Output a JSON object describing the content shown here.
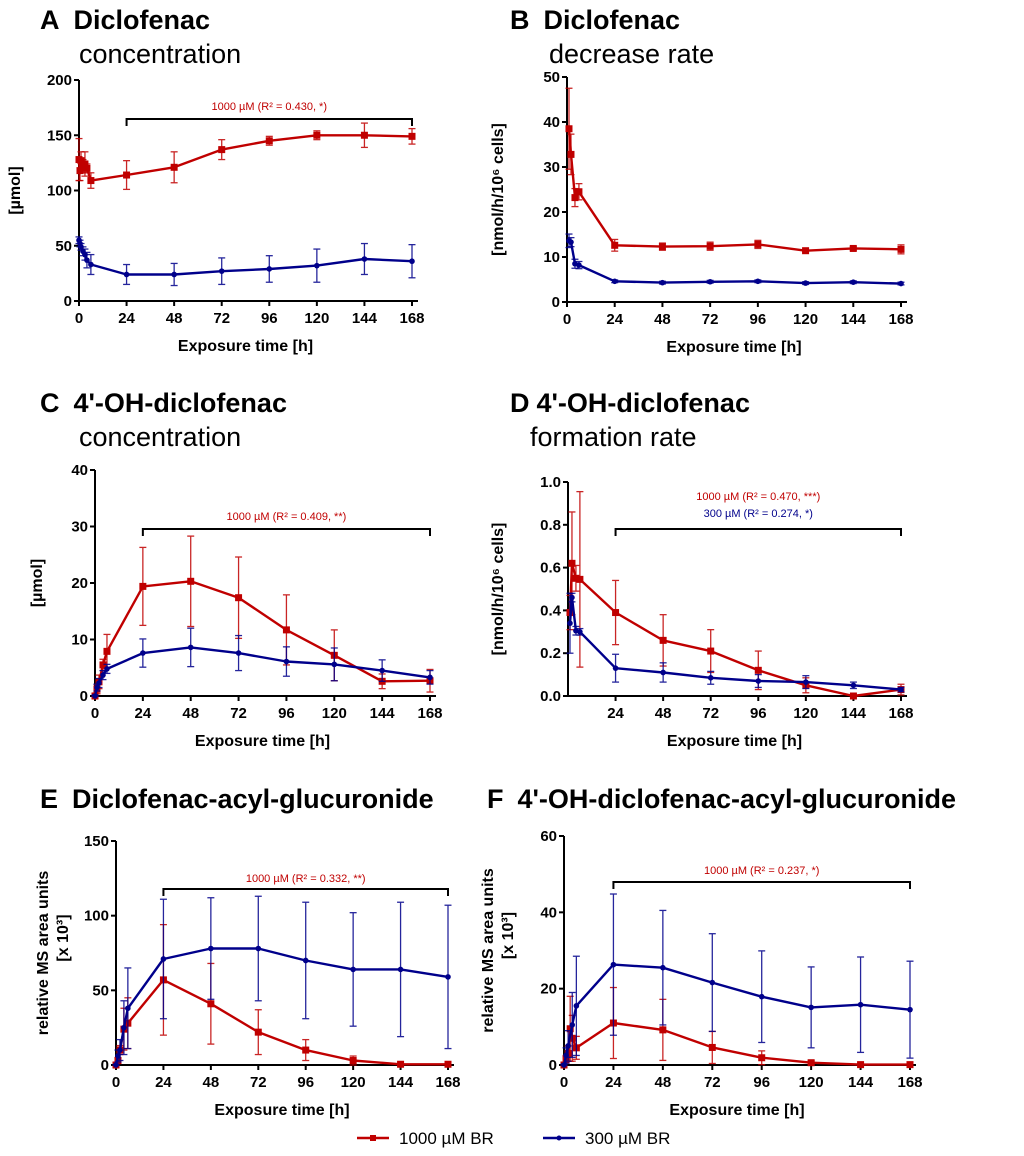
{
  "colors": {
    "red": "#c00000",
    "blue": "#00008b",
    "axis": "#000000"
  },
  "legend": [
    {
      "label": "1000 µM BR",
      "color": "#c00000",
      "marker": "square"
    },
    {
      "label": "300 µM BR",
      "color": "#00008b",
      "marker": "circle"
    }
  ],
  "chart_data": [
    {
      "panel": "A",
      "type": "line",
      "title": "Diclofenac",
      "subtitle": "concentration",
      "xlabel": "Exposure time [h]",
      "ylabel": "[µmol]",
      "xlim": [
        0,
        168
      ],
      "ylim": [
        0,
        200
      ],
      "xticks": [
        "0",
        "24",
        "48",
        "72",
        "96",
        "120",
        "144",
        "168"
      ],
      "yticks": [
        "0",
        "50",
        "100",
        "150",
        "200"
      ],
      "annotation": {
        "lines": [
          {
            "text": "1000 µM (R² = 0.430, *)",
            "color": "#c00000"
          }
        ],
        "bracket": [
          24,
          168
        ]
      },
      "series": [
        {
          "name": "1000 µM BR",
          "color": "#c00000",
          "x": [
            0,
            0.5,
            1,
            2,
            3,
            4,
            6,
            24,
            48,
            72,
            96,
            120,
            144,
            168
          ],
          "y": [
            128,
            118,
            127,
            122,
            124,
            120,
            109,
            114,
            121,
            137,
            145,
            150,
            150,
            149
          ],
          "err": [
            19,
            9,
            8,
            6,
            11,
            4,
            7,
            13,
            14,
            9,
            4,
            4,
            11,
            7
          ]
        },
        {
          "name": "300 µM BR",
          "color": "#00008b",
          "x": [
            0,
            0.5,
            1,
            2,
            3,
            4,
            6,
            24,
            48,
            72,
            96,
            120,
            144,
            168
          ],
          "y": [
            55,
            52,
            49,
            45,
            42,
            37,
            33,
            24,
            24,
            27,
            29,
            32,
            38,
            36
          ],
          "err": [
            3,
            3,
            3,
            4,
            5,
            7,
            9,
            9,
            10,
            12,
            12,
            15,
            14,
            15
          ]
        }
      ]
    },
    {
      "panel": "B",
      "type": "line",
      "title": "Diclofenac",
      "subtitle": "decrease rate",
      "xlabel": "Exposure time [h]",
      "ylabel": "[nmol/h/10⁶ cells]",
      "xlim": [
        0,
        168
      ],
      "ylim": [
        0,
        50
      ],
      "xticks": [
        "0",
        "24",
        "48",
        "72",
        "96",
        "120",
        "144",
        "168"
      ],
      "yticks": [
        "0",
        "10",
        "20",
        "30",
        "40",
        "50"
      ],
      "annotation": null,
      "series": [
        {
          "name": "1000 µM BR",
          "color": "#c00000",
          "x": [
            1,
            2,
            4,
            6,
            24,
            48,
            72,
            96,
            120,
            144,
            168
          ],
          "y": [
            38.5,
            32.8,
            23.2,
            24.5,
            12.6,
            12.3,
            12.4,
            12.8,
            11.4,
            11.9,
            11.7
          ],
          "err": [
            9,
            4.5,
            2,
            1.8,
            1.3,
            0.8,
            0.9,
            0.9,
            0.3,
            0.4,
            1
          ]
        },
        {
          "name": "300 µM BR",
          "color": "#00008b",
          "x": [
            1,
            2,
            4,
            6,
            24,
            48,
            72,
            96,
            120,
            144,
            168
          ],
          "y": [
            13.6,
            13.3,
            8.5,
            8.2,
            4.6,
            4.3,
            4.5,
            4.6,
            4.2,
            4.4,
            4.1
          ],
          "err": [
            1.5,
            1,
            1,
            0.8,
            0.3,
            0.3,
            0.3,
            0.3,
            0.3,
            0.3,
            0.3
          ]
        }
      ]
    },
    {
      "panel": "C",
      "type": "line",
      "title": "4'-OH-diclofenac",
      "subtitle": "concentration",
      "xlabel": "Exposure time [h]",
      "ylabel": "[µmol]",
      "xlim": [
        0,
        168
      ],
      "ylim": [
        0,
        40
      ],
      "xticks": [
        "0",
        "24",
        "48",
        "72",
        "96",
        "120",
        "144",
        "168"
      ],
      "yticks": [
        "0",
        "10",
        "20",
        "30",
        "40"
      ],
      "annotation": {
        "lines": [
          {
            "text": "1000 µM (R² = 0.409, **)",
            "color": "#c00000"
          }
        ],
        "bracket": [
          24,
          168
        ]
      },
      "series": [
        {
          "name": "1000 µM BR",
          "color": "#c00000",
          "x": [
            0,
            1,
            2,
            4,
            6,
            24,
            48,
            72,
            96,
            120,
            144,
            168
          ],
          "y": [
            0,
            1.2,
            2.5,
            5.5,
            7.9,
            19.4,
            20.3,
            17.4,
            11.7,
            7.2,
            2.6,
            2.7
          ],
          "err": [
            0.3,
            0.8,
            1.2,
            1,
            3,
            6.9,
            8,
            7.2,
            6.2,
            4.5,
            1.3,
            2
          ]
        },
        {
          "name": "300 µM BR",
          "color": "#00008b",
          "x": [
            0,
            1,
            2,
            4,
            6,
            24,
            48,
            72,
            96,
            120,
            144,
            168
          ],
          "y": [
            0,
            1.5,
            2.3,
            3.7,
            4.8,
            7.6,
            8.6,
            7.6,
            6.1,
            5.6,
            4.5,
            3.3
          ],
          "err": [
            0.2,
            0.6,
            0.8,
            0.8,
            0.8,
            2.5,
            3.4,
            3.1,
            2.6,
            2.9,
            1.9,
            1.2
          ]
        }
      ]
    },
    {
      "panel": "D",
      "type": "line",
      "title": "4'-OH-diclofenac",
      "subtitle": "formation rate",
      "xlabel": "Exposure time [h]",
      "ylabel": "[nmol/h/10⁶ cells]",
      "xlim": [
        0,
        168
      ],
      "ylim": [
        0,
        1.0
      ],
      "xticks": [
        "24",
        "48",
        "72",
        "96",
        "120",
        "144",
        "168"
      ],
      "yticks": [
        "0.0",
        "0.2",
        "0.4",
        "0.6",
        "0.8",
        "1.0"
      ],
      "annotation": {
        "lines": [
          {
            "text": "1000 µM (R² = 0.470, ***)",
            "color": "#c00000"
          },
          {
            "text": "300 µM (R² = 0.274, *)",
            "color": "#00008b"
          }
        ],
        "bracket": [
          24,
          168
        ]
      },
      "series": [
        {
          "name": "1000 µM BR",
          "color": "#c00000",
          "x": [
            1,
            2,
            4,
            6,
            24,
            48,
            72,
            96,
            120,
            144,
            168
          ],
          "y": [
            0.39,
            0.62,
            0.55,
            0.545,
            0.39,
            0.26,
            0.21,
            0.12,
            0.05,
            0.0,
            0.03
          ],
          "err": [
            0.08,
            0.24,
            0.06,
            0.41,
            0.15,
            0.12,
            0.1,
            0.09,
            0.035,
            0.005,
            0.025
          ]
        },
        {
          "name": "300 µM BR",
          "color": "#00008b",
          "x": [
            1,
            2,
            4,
            6,
            24,
            48,
            72,
            96,
            120,
            144,
            168
          ],
          "y": [
            0.34,
            0.46,
            0.305,
            0.3,
            0.13,
            0.11,
            0.085,
            0.07,
            0.065,
            0.05,
            0.03
          ],
          "err": [
            0.14,
            0.02,
            0.02,
            0.015,
            0.065,
            0.045,
            0.03,
            0.03,
            0.03,
            0.015,
            0.01
          ]
        }
      ]
    },
    {
      "panel": "E",
      "type": "line",
      "title": "Diclofenac-acyl-glucuronide",
      "subtitle": "",
      "xlabel": "Exposure time [h]",
      "ylabel": "relative MS area units",
      "ylabel2": "[x 10³]",
      "xlim": [
        0,
        168
      ],
      "ylim": [
        0,
        150
      ],
      "xticks": [
        "0",
        "24",
        "48",
        "72",
        "96",
        "120",
        "144",
        "168"
      ],
      "yticks": [
        "0",
        "50",
        "100",
        "150"
      ],
      "annotation": {
        "lines": [
          {
            "text": "1000 µM (R² = 0.332, **)",
            "color": "#c00000"
          }
        ],
        "bracket": [
          24,
          168
        ]
      },
      "series": [
        {
          "name": "1000 µM BR",
          "color": "#c00000",
          "x": [
            0,
            1,
            2,
            4,
            6,
            24,
            48,
            72,
            96,
            120,
            144,
            168
          ],
          "y": [
            0,
            3,
            10,
            24,
            28,
            57,
            41,
            22,
            10,
            3,
            0.5,
            0.5
          ],
          "err": [
            0.5,
            2,
            3,
            14,
            17,
            37,
            27,
            15,
            7,
            3,
            0.5,
            0.5
          ]
        },
        {
          "name": "300 µM BR",
          "color": "#00008b",
          "x": [
            0,
            1,
            2,
            4,
            6,
            24,
            48,
            72,
            96,
            120,
            144,
            168
          ],
          "y": [
            0,
            6,
            10,
            25,
            38,
            71,
            78,
            78,
            70,
            64,
            64,
            59
          ],
          "err": [
            0.5,
            4,
            7,
            18,
            27,
            40,
            34,
            35,
            39,
            38,
            45,
            48
          ]
        }
      ]
    },
    {
      "panel": "F",
      "type": "line",
      "title": "4'-OH-diclofenac-acyl-glucuronide",
      "subtitle": "",
      "xlabel": "Exposure time [h]",
      "ylabel": "relative MS area units",
      "ylabel2": "[x 10³]",
      "xlim": [
        0,
        168
      ],
      "ylim": [
        0,
        60
      ],
      "xticks": [
        "0",
        "24",
        "48",
        "72",
        "96",
        "120",
        "144",
        "168"
      ],
      "yticks": [
        "0",
        "20",
        "40",
        "60"
      ],
      "annotation": {
        "lines": [
          {
            "text": "1000 µM (R² = 0.237, *)",
            "color": "#c00000"
          }
        ],
        "bracket": [
          24,
          168
        ]
      },
      "series": [
        {
          "name": "1000 µM BR",
          "color": "#c00000",
          "x": [
            0,
            1,
            2,
            3,
            4,
            6,
            24,
            48,
            72,
            96,
            120,
            144,
            168
          ],
          "y": [
            0,
            1.5,
            3,
            9.5,
            7,
            4.5,
            11,
            9.2,
            4.6,
            1.9,
            0.6,
            0.1,
            0.1
          ],
          "err": [
            0.3,
            1,
            2,
            8.5,
            6,
            3,
            9.3,
            8,
            4.2,
            1.8,
            0.5,
            0.1,
            0.1
          ]
        },
        {
          "name": "300 µM BR",
          "color": "#00008b",
          "x": [
            0,
            1,
            2,
            4,
            6,
            24,
            48,
            72,
            96,
            120,
            144,
            168
          ],
          "y": [
            0,
            2.5,
            5,
            10.5,
            15.5,
            26.3,
            25.5,
            21.6,
            17.9,
            15.1,
            15.8,
            14.5
          ],
          "err": [
            0.3,
            2,
            4,
            8.5,
            13,
            18.5,
            15,
            12.8,
            12,
            10.6,
            12.5,
            12.7
          ]
        }
      ]
    }
  ]
}
